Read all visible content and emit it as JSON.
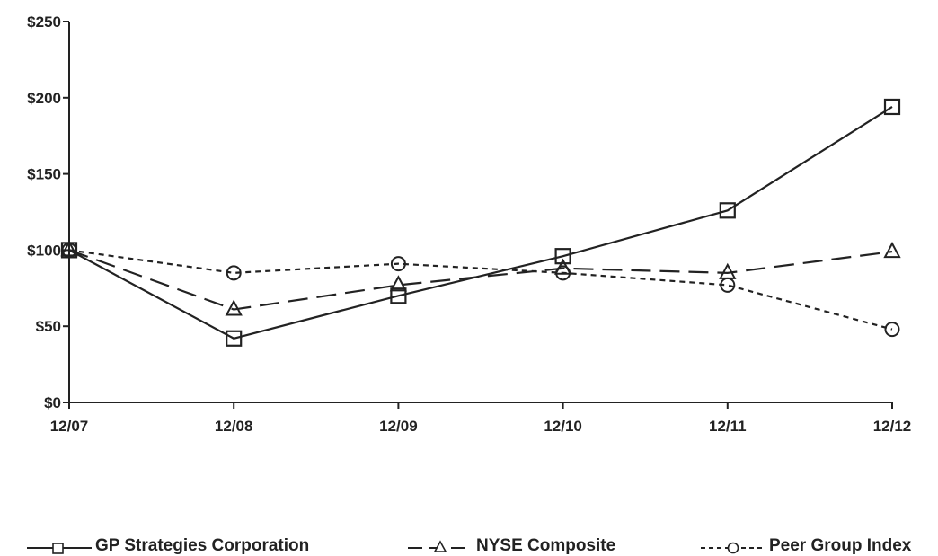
{
  "chart_data": {
    "type": "line",
    "categories": [
      "12/07",
      "12/08",
      "12/09",
      "12/10",
      "12/11",
      "12/12"
    ],
    "ylim": [
      0,
      250
    ],
    "yticks": [
      0,
      50,
      100,
      150,
      200,
      250
    ],
    "ytick_labels": [
      "$0",
      "$50",
      "$100",
      "$150",
      "$200",
      "$250"
    ],
    "grid": false,
    "legend_position": "bottom",
    "series": [
      {
        "name": "GP Strategies Corporation",
        "values": [
          100,
          42,
          70,
          96,
          126,
          194
        ],
        "marker": "square",
        "line_style": "solid",
        "color": "#222222"
      },
      {
        "name": "NYSE Composite",
        "values": [
          100,
          61,
          77,
          88,
          85,
          99
        ],
        "marker": "triangle",
        "line_style": "dashed",
        "color": "#222222"
      },
      {
        "name": "Peer Group Index",
        "values": [
          100,
          85,
          91,
          85,
          77,
          48
        ],
        "marker": "circle",
        "line_style": "dotted",
        "color": "#222222"
      }
    ]
  }
}
